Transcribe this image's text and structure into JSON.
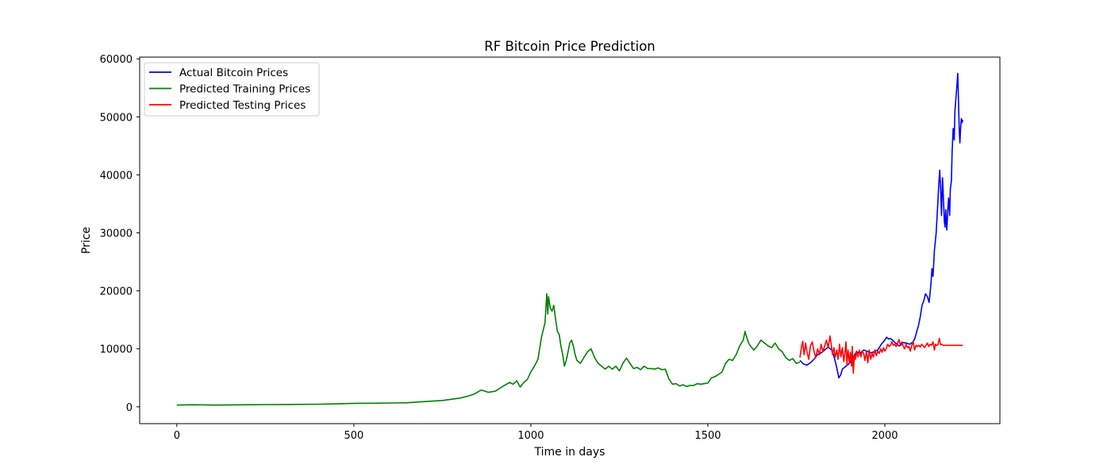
{
  "chart_data": {
    "type": "line",
    "title": "RF Bitcoin Price Prediction",
    "xlabel": "Time in days",
    "ylabel": "Price",
    "xlim": [
      -105,
      2325
    ],
    "ylim": [
      -2900,
      60300
    ],
    "xticks": [
      0,
      500,
      1000,
      1500,
      2000
    ],
    "yticks": [
      0,
      10000,
      20000,
      30000,
      40000,
      50000,
      60000
    ],
    "grid": false,
    "legend_position": "top-left",
    "series": [
      {
        "name": "Actual Bitcoin Prices",
        "color": "#0000ff",
        "points": [
          [
            1760,
            8000
          ],
          [
            1770,
            7400
          ],
          [
            1780,
            7200
          ],
          [
            1790,
            7600
          ],
          [
            1800,
            8200
          ],
          [
            1810,
            9000
          ],
          [
            1820,
            9300
          ],
          [
            1830,
            9800
          ],
          [
            1840,
            10300
          ],
          [
            1850,
            9800
          ],
          [
            1855,
            9000
          ],
          [
            1860,
            7800
          ],
          [
            1865,
            6500
          ],
          [
            1870,
            5000
          ],
          [
            1875,
            5500
          ],
          [
            1880,
            6500
          ],
          [
            1890,
            7000
          ],
          [
            1900,
            7500
          ],
          [
            1910,
            8500
          ],
          [
            1920,
            9500
          ],
          [
            1930,
            9200
          ],
          [
            1940,
            9800
          ],
          [
            1950,
            9600
          ],
          [
            1960,
            9300
          ],
          [
            1970,
            9500
          ],
          [
            1980,
            9800
          ],
          [
            1990,
            10800
          ],
          [
            2000,
            11500
          ],
          [
            2005,
            12000
          ],
          [
            2010,
            11700
          ],
          [
            2015,
            11800
          ],
          [
            2020,
            11600
          ],
          [
            2030,
            11000
          ],
          [
            2040,
            10500
          ],
          [
            2045,
            10600
          ],
          [
            2050,
            11100
          ],
          [
            2060,
            11000
          ],
          [
            2070,
            10800
          ],
          [
            2080,
            11200
          ],
          [
            2085,
            11800
          ],
          [
            2090,
            13000
          ],
          [
            2095,
            14000
          ],
          [
            2100,
            15500
          ],
          [
            2105,
            17500
          ],
          [
            2110,
            18300
          ],
          [
            2115,
            19500
          ],
          [
            2120,
            19000
          ],
          [
            2125,
            18000
          ],
          [
            2130,
            21000
          ],
          [
            2133,
            23800
          ],
          [
            2136,
            22500
          ],
          [
            2140,
            27000
          ],
          [
            2145,
            30000
          ],
          [
            2150,
            35500
          ],
          [
            2152,
            38000
          ],
          [
            2155,
            40800
          ],
          [
            2158,
            37000
          ],
          [
            2160,
            33000
          ],
          [
            2163,
            39500
          ],
          [
            2166,
            35000
          ],
          [
            2168,
            32000
          ],
          [
            2170,
            31000
          ],
          [
            2172,
            34000
          ],
          [
            2175,
            30500
          ],
          [
            2178,
            34000
          ],
          [
            2180,
            36000
          ],
          [
            2183,
            33000
          ],
          [
            2185,
            37500
          ],
          [
            2188,
            39000
          ],
          [
            2190,
            44000
          ],
          [
            2193,
            48000
          ],
          [
            2196,
            46000
          ],
          [
            2198,
            51000
          ],
          [
            2200,
            52500
          ],
          [
            2203,
            55000
          ],
          [
            2206,
            57500
          ],
          [
            2208,
            53000
          ],
          [
            2210,
            48000
          ],
          [
            2212,
            45500
          ],
          [
            2214,
            48000
          ],
          [
            2216,
            49700
          ],
          [
            2218,
            49000
          ],
          [
            2220,
            49500
          ]
        ]
      },
      {
        "name": "Predicted Training Prices",
        "color": "#008000",
        "points": [
          [
            0,
            300
          ],
          [
            50,
            350
          ],
          [
            100,
            300
          ],
          [
            150,
            330
          ],
          [
            200,
            350
          ],
          [
            250,
            380
          ],
          [
            300,
            400
          ],
          [
            350,
            430
          ],
          [
            400,
            450
          ],
          [
            450,
            500
          ],
          [
            500,
            600
          ],
          [
            550,
            620
          ],
          [
            600,
            650
          ],
          [
            650,
            700
          ],
          [
            700,
            900
          ],
          [
            750,
            1100
          ],
          [
            800,
            1500
          ],
          [
            820,
            1800
          ],
          [
            840,
            2200
          ],
          [
            860,
            2900
          ],
          [
            880,
            2500
          ],
          [
            900,
            2700
          ],
          [
            920,
            3500
          ],
          [
            940,
            4200
          ],
          [
            950,
            3900
          ],
          [
            960,
            4500
          ],
          [
            970,
            3400
          ],
          [
            980,
            4200
          ],
          [
            990,
            4700
          ],
          [
            1000,
            6000
          ],
          [
            1010,
            7000
          ],
          [
            1020,
            8200
          ],
          [
            1030,
            12000
          ],
          [
            1040,
            14500
          ],
          [
            1045,
            19500
          ],
          [
            1048,
            16000
          ],
          [
            1050,
            19000
          ],
          [
            1055,
            17000
          ],
          [
            1060,
            16500
          ],
          [
            1065,
            17500
          ],
          [
            1070,
            15000
          ],
          [
            1075,
            13000
          ],
          [
            1080,
            12500
          ],
          [
            1085,
            10500
          ],
          [
            1090,
            9000
          ],
          [
            1095,
            7000
          ],
          [
            1100,
            8000
          ],
          [
            1105,
            9500
          ],
          [
            1110,
            11000
          ],
          [
            1115,
            11500
          ],
          [
            1120,
            10500
          ],
          [
            1125,
            9000
          ],
          [
            1130,
            8000
          ],
          [
            1140,
            7500
          ],
          [
            1150,
            8500
          ],
          [
            1160,
            9500
          ],
          [
            1170,
            10000
          ],
          [
            1180,
            8500
          ],
          [
            1190,
            7500
          ],
          [
            1200,
            7000
          ],
          [
            1210,
            6500
          ],
          [
            1220,
            7000
          ],
          [
            1230,
            6500
          ],
          [
            1240,
            7000
          ],
          [
            1250,
            6200
          ],
          [
            1260,
            7500
          ],
          [
            1270,
            8400
          ],
          [
            1280,
            7500
          ],
          [
            1290,
            6600
          ],
          [
            1300,
            6800
          ],
          [
            1310,
            6400
          ],
          [
            1320,
            7000
          ],
          [
            1330,
            6600
          ],
          [
            1340,
            6600
          ],
          [
            1350,
            6500
          ],
          [
            1360,
            6700
          ],
          [
            1370,
            6400
          ],
          [
            1380,
            6500
          ],
          [
            1390,
            4800
          ],
          [
            1400,
            3900
          ],
          [
            1410,
            4000
          ],
          [
            1420,
            3600
          ],
          [
            1430,
            3800
          ],
          [
            1440,
            3500
          ],
          [
            1450,
            3700
          ],
          [
            1460,
            3700
          ],
          [
            1470,
            4000
          ],
          [
            1480,
            3900
          ],
          [
            1490,
            4000
          ],
          [
            1500,
            4100
          ],
          [
            1510,
            5000
          ],
          [
            1520,
            5200
          ],
          [
            1530,
            5600
          ],
          [
            1540,
            6000
          ],
          [
            1550,
            7500
          ],
          [
            1560,
            8200
          ],
          [
            1570,
            8000
          ],
          [
            1580,
            9000
          ],
          [
            1590,
            10500
          ],
          [
            1600,
            11500
          ],
          [
            1605,
            13000
          ],
          [
            1610,
            12000
          ],
          [
            1615,
            11000
          ],
          [
            1620,
            10500
          ],
          [
            1630,
            9800
          ],
          [
            1640,
            10500
          ],
          [
            1650,
            11500
          ],
          [
            1660,
            11000
          ],
          [
            1670,
            10500
          ],
          [
            1680,
            10200
          ],
          [
            1690,
            11000
          ],
          [
            1700,
            10000
          ],
          [
            1710,
            9500
          ],
          [
            1720,
            8500
          ],
          [
            1730,
            8000
          ],
          [
            1740,
            8300
          ],
          [
            1750,
            7500
          ],
          [
            1760,
            7700
          ]
        ]
      },
      {
        "name": "Predicted Testing Prices",
        "color": "#ff0000",
        "points": [
          [
            1760,
            8500
          ],
          [
            1765,
            10500
          ],
          [
            1768,
            11300
          ],
          [
            1772,
            9000
          ],
          [
            1776,
            11000
          ],
          [
            1780,
            9500
          ],
          [
            1785,
            8200
          ],
          [
            1790,
            10500
          ],
          [
            1795,
            11200
          ],
          [
            1800,
            9500
          ],
          [
            1805,
            8500
          ],
          [
            1810,
            10000
          ],
          [
            1815,
            9000
          ],
          [
            1820,
            10800
          ],
          [
            1825,
            9500
          ],
          [
            1830,
            10500
          ],
          [
            1835,
            11500
          ],
          [
            1840,
            10200
          ],
          [
            1845,
            12200
          ],
          [
            1848,
            11000
          ],
          [
            1852,
            9000
          ],
          [
            1856,
            10200
          ],
          [
            1860,
            8600
          ],
          [
            1864,
            9800
          ],
          [
            1868,
            8200
          ],
          [
            1872,
            10800
          ],
          [
            1876,
            8600
          ],
          [
            1880,
            10200
          ],
          [
            1884,
            7800
          ],
          [
            1888,
            9800
          ],
          [
            1890,
            11200
          ],
          [
            1893,
            7200
          ],
          [
            1896,
            9800
          ],
          [
            1900,
            7600
          ],
          [
            1903,
            9400
          ],
          [
            1906,
            7000
          ],
          [
            1908,
            10400
          ],
          [
            1911,
            5800
          ],
          [
            1914,
            9000
          ],
          [
            1917,
            8200
          ],
          [
            1920,
            9600
          ],
          [
            1924,
            8600
          ],
          [
            1928,
            9800
          ],
          [
            1932,
            8600
          ],
          [
            1936,
            9600
          ],
          [
            1940,
            9200
          ],
          [
            1944,
            8000
          ],
          [
            1948,
            9600
          ],
          [
            1952,
            7600
          ],
          [
            1956,
            9800
          ],
          [
            1960,
            8200
          ],
          [
            1964,
            9200
          ],
          [
            1968,
            8600
          ],
          [
            1972,
            9800
          ],
          [
            1976,
            8800
          ],
          [
            1980,
            9600
          ],
          [
            1984,
            9200
          ],
          [
            1988,
            10000
          ],
          [
            1992,
            9400
          ],
          [
            1996,
            10200
          ],
          [
            2000,
            9600
          ],
          [
            2004,
            10000
          ],
          [
            2008,
            10800
          ],
          [
            2012,
            10400
          ],
          [
            2016,
            10600
          ],
          [
            2020,
            11200
          ],
          [
            2024,
            10600
          ],
          [
            2028,
            10800
          ],
          [
            2032,
            10400
          ],
          [
            2036,
            11000
          ],
          [
            2040,
            11600
          ],
          [
            2044,
            10600
          ],
          [
            2048,
            11200
          ],
          [
            2052,
            10400
          ],
          [
            2056,
            10000
          ],
          [
            2060,
            10800
          ],
          [
            2064,
            10200
          ],
          [
            2068,
            10400
          ],
          [
            2072,
            9600
          ],
          [
            2076,
            10600
          ],
          [
            2080,
            11200
          ],
          [
            2084,
            9800
          ],
          [
            2088,
            10600
          ],
          [
            2092,
            10400
          ],
          [
            2096,
            10600
          ],
          [
            2100,
            10300
          ],
          [
            2104,
            10800
          ],
          [
            2108,
            10500
          ],
          [
            2112,
            10200
          ],
          [
            2116,
            10600
          ],
          [
            2120,
            11000
          ],
          [
            2124,
            10400
          ],
          [
            2128,
            10800
          ],
          [
            2132,
            10600
          ],
          [
            2136,
            11200
          ],
          [
            2140,
            9800
          ],
          [
            2143,
            10800
          ],
          [
            2146,
            10600
          ],
          [
            2150,
            10700
          ],
          [
            2154,
            11800
          ],
          [
            2157,
            10700
          ],
          [
            2160,
            10800
          ],
          [
            2165,
            10600
          ],
          [
            2170,
            10600
          ],
          [
            2180,
            10600
          ],
          [
            2190,
            10600
          ],
          [
            2200,
            10600
          ],
          [
            2210,
            10600
          ],
          [
            2220,
            10600
          ]
        ]
      }
    ]
  }
}
